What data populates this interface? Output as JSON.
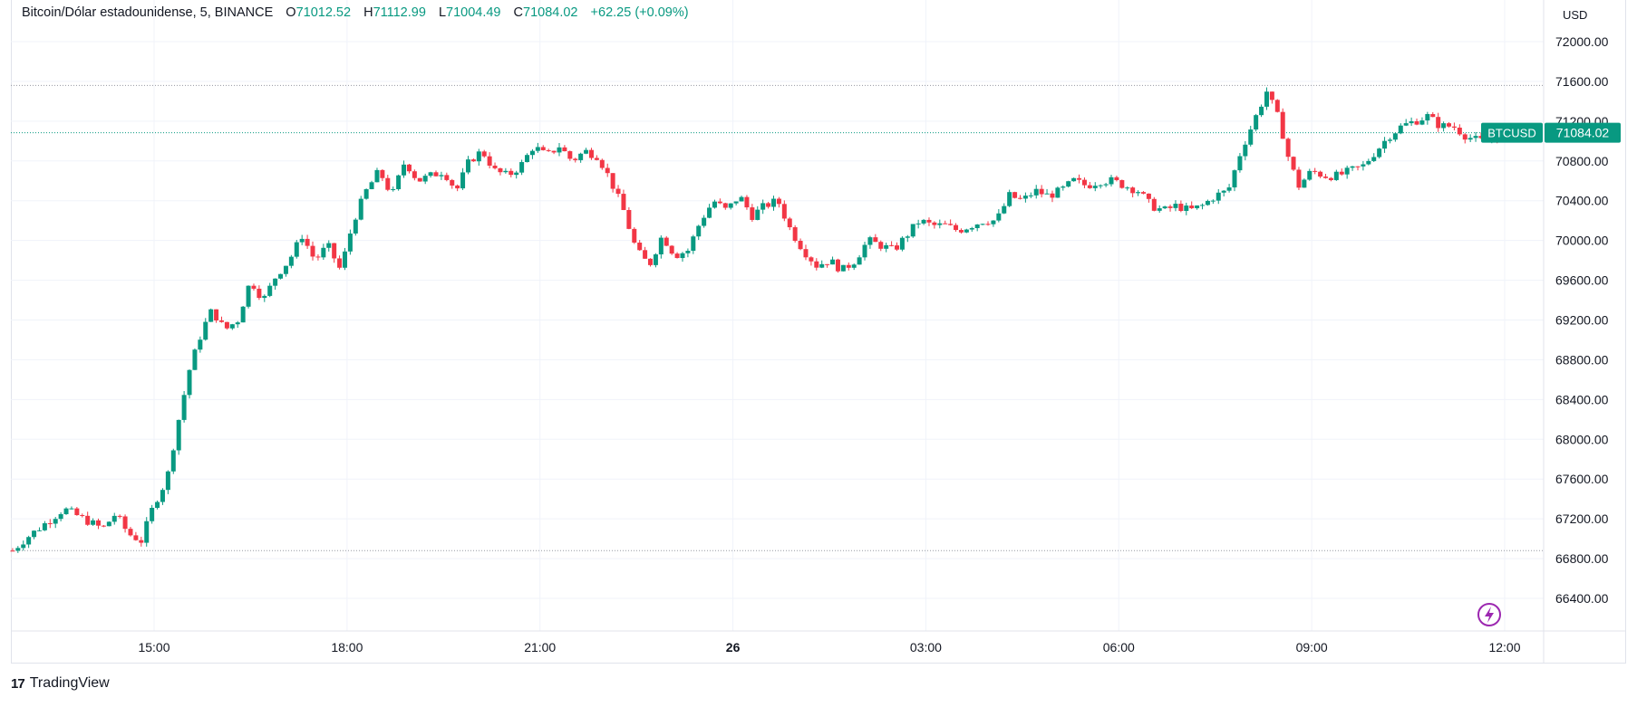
{
  "legend": {
    "symbol": "Bitcoin/Dólar estadounidense, 5, BINANCE",
    "o_label": "O",
    "o_value": "71012.52",
    "h_label": "H",
    "h_value": "71112.99",
    "l_label": "L",
    "l_value": "71004.49",
    "c_label": "C",
    "c_value": "71084.02",
    "change": "+62.25 (+0.09%)"
  },
  "currency": "USD",
  "price_tag": {
    "ticker": "BTCUSD",
    "value": "71084.02"
  },
  "branding": "TradingView",
  "colors": {
    "up": "#089981",
    "down": "#f23645",
    "grid": "#f0f3fa",
    "border": "#e0e3eb",
    "accent": "#9c27b0"
  },
  "chart_data": {
    "type": "candlestick",
    "title": "Bitcoin/Dólar estadounidense, 5, BINANCE",
    "ylim": [
      66200,
      72200
    ],
    "y_ticks": [
      66400,
      66800,
      67200,
      67600,
      68000,
      68400,
      68800,
      69200,
      69600,
      70000,
      70400,
      70800,
      71200,
      71600,
      72000
    ],
    "y_tick_labels": [
      "66400.00",
      "66800.00",
      "67200.00",
      "67600.00",
      "68000.00",
      "68400.00",
      "68800.00",
      "69200.00",
      "69600.00",
      "70000.00",
      "70400.00",
      "70800.00",
      "71200.00",
      "71600.00",
      "72000.00"
    ],
    "x_ticks": [
      "15:00",
      "18:00",
      "21:00",
      "26",
      "03:00",
      "06:00",
      "09:00",
      "12:00"
    ],
    "x_tick_bold": [
      false,
      false,
      false,
      true,
      false,
      false,
      false,
      false
    ],
    "x_tick_hours": [
      15,
      18,
      21,
      24,
      27,
      30,
      33,
      36
    ],
    "time_range_hours": [
      12.8,
      36.05
    ],
    "grid": true,
    "reference_lines": [
      71560,
      66880
    ],
    "last_price": 71084.02,
    "close_path": [
      [
        12.8,
        66880
      ],
      [
        13.0,
        67000
      ],
      [
        13.3,
        67150
      ],
      [
        13.6,
        67300
      ],
      [
        13.9,
        67200
      ],
      [
        14.2,
        67100
      ],
      [
        14.4,
        67250
      ],
      [
        14.6,
        67050
      ],
      [
        14.8,
        66980
      ],
      [
        15.0,
        67350
      ],
      [
        15.2,
        67600
      ],
      [
        15.35,
        68100
      ],
      [
        15.55,
        68700
      ],
      [
        15.75,
        69100
      ],
      [
        15.9,
        69300
      ],
      [
        16.1,
        69100
      ],
      [
        16.3,
        69200
      ],
      [
        16.5,
        69600
      ],
      [
        16.7,
        69400
      ],
      [
        16.9,
        69650
      ],
      [
        17.1,
        69800
      ],
      [
        17.3,
        70050
      ],
      [
        17.5,
        69800
      ],
      [
        17.7,
        69950
      ],
      [
        17.9,
        69700
      ],
      [
        18.1,
        70200
      ],
      [
        18.3,
        70500
      ],
      [
        18.5,
        70700
      ],
      [
        18.7,
        70450
      ],
      [
        18.9,
        70800
      ],
      [
        19.1,
        70600
      ],
      [
        19.3,
        70650
      ],
      [
        19.5,
        70700
      ],
      [
        19.7,
        70500
      ],
      [
        19.9,
        70800
      ],
      [
        20.1,
        70900
      ],
      [
        20.3,
        70700
      ],
      [
        20.5,
        70650
      ],
      [
        20.7,
        70750
      ],
      [
        20.9,
        70950
      ],
      [
        21.1,
        70850
      ],
      [
        21.3,
        70950
      ],
      [
        21.5,
        70800
      ],
      [
        21.7,
        70900
      ],
      [
        21.9,
        70850
      ],
      [
        22.1,
        70600
      ],
      [
        22.3,
        70300
      ],
      [
        22.5,
        69900
      ],
      [
        22.7,
        69750
      ],
      [
        22.9,
        70050
      ],
      [
        23.1,
        69850
      ],
      [
        23.3,
        69900
      ],
      [
        23.5,
        70200
      ],
      [
        23.7,
        70400
      ],
      [
        23.9,
        70300
      ],
      [
        24.1,
        70450
      ],
      [
        24.3,
        70250
      ],
      [
        24.5,
        70350
      ],
      [
        24.7,
        70400
      ],
      [
        24.9,
        70100
      ],
      [
        25.1,
        69900
      ],
      [
        25.3,
        69750
      ],
      [
        25.5,
        69800
      ],
      [
        25.7,
        69700
      ],
      [
        25.9,
        69800
      ],
      [
        26.1,
        70000
      ],
      [
        26.3,
        69950
      ],
      [
        26.5,
        69900
      ],
      [
        26.7,
        70050
      ],
      [
        26.9,
        70200
      ],
      [
        27.1,
        70150
      ],
      [
        27.3,
        70150
      ],
      [
        27.5,
        70100
      ],
      [
        27.7,
        70150
      ],
      [
        27.9,
        70200
      ],
      [
        28.1,
        70200
      ],
      [
        28.3,
        70450
      ],
      [
        28.5,
        70400
      ],
      [
        28.7,
        70500
      ],
      [
        28.9,
        70450
      ],
      [
        29.1,
        70500
      ],
      [
        29.3,
        70600
      ],
      [
        29.5,
        70550
      ],
      [
        29.7,
        70600
      ],
      [
        29.9,
        70600
      ],
      [
        30.1,
        70550
      ],
      [
        30.3,
        70500
      ],
      [
        30.5,
        70350
      ],
      [
        30.7,
        70300
      ],
      [
        30.9,
        70350
      ],
      [
        31.1,
        70300
      ],
      [
        31.3,
        70350
      ],
      [
        31.5,
        70450
      ],
      [
        31.7,
        70500
      ],
      [
        31.9,
        70900
      ],
      [
        32.1,
        71200
      ],
      [
        32.3,
        71500
      ],
      [
        32.5,
        71200
      ],
      [
        32.65,
        70800
      ],
      [
        32.8,
        70550
      ],
      [
        33.0,
        70700
      ],
      [
        33.2,
        70650
      ],
      [
        33.4,
        70650
      ],
      [
        33.6,
        70700
      ],
      [
        33.8,
        70750
      ],
      [
        34.0,
        70900
      ],
      [
        34.2,
        71050
      ],
      [
        34.4,
        71150
      ],
      [
        34.6,
        71200
      ],
      [
        34.8,
        71250
      ],
      [
        35.0,
        71150
      ],
      [
        35.2,
        71150
      ],
      [
        35.4,
        71050
      ],
      [
        35.6,
        71000
      ],
      [
        35.8,
        71012
      ],
      [
        36.0,
        71084
      ]
    ]
  }
}
